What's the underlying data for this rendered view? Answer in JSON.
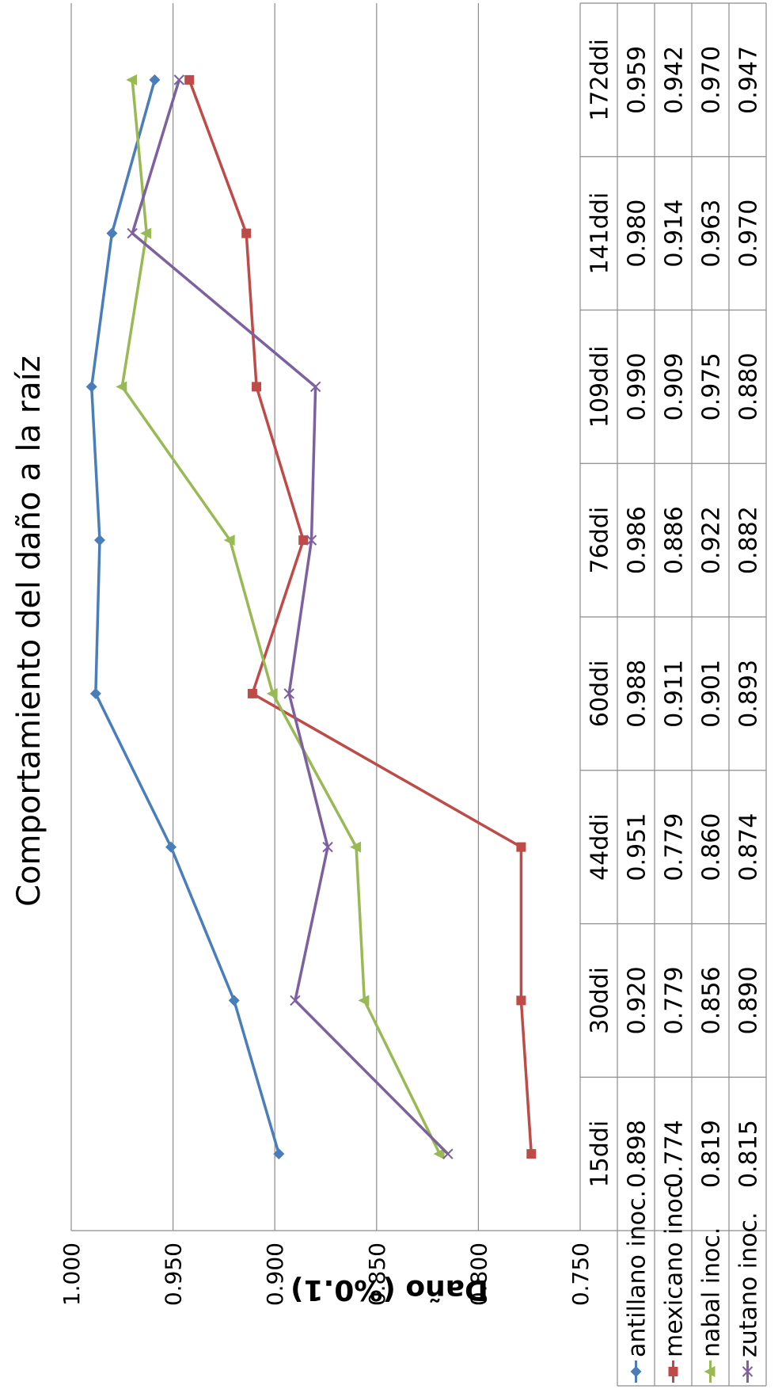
{
  "chart_data": {
    "type": "line",
    "title": "Comportamiento del daño a la raíz",
    "ylabel": "Daño  (%0.1)",
    "xlabel": "",
    "categories": [
      "15ddi",
      "30ddi",
      "44ddi",
      "60ddi",
      "76ddi",
      "109ddi",
      "141ddi",
      "172ddi"
    ],
    "ylim": [
      0.75,
      1.0
    ],
    "yticks": [
      "0.750",
      "0.800",
      "0.850",
      "0.900",
      "0.950",
      "1.000"
    ],
    "grid": true,
    "legend": "data table",
    "orientation": "rotated 90° counter-clockwise",
    "series": [
      {
        "name": "antillano inoc.",
        "color": "#4a7ebb",
        "marker": "diamond",
        "values": [
          0.898,
          0.92,
          0.951,
          0.988,
          0.986,
          0.99,
          0.98,
          0.959
        ],
        "labels": [
          "0.898",
          "0.920",
          "0.951",
          "0.988",
          "0.986",
          "0.990",
          "0.980",
          "0.959"
        ]
      },
      {
        "name": "mexicano inoc.",
        "color": "#be4b48",
        "marker": "square",
        "values": [
          0.774,
          0.779,
          0.779,
          0.911,
          0.886,
          0.909,
          0.914,
          0.942
        ],
        "labels": [
          "0.774",
          "0.779",
          "0.779",
          "0.911",
          "0.886",
          "0.909",
          "0.914",
          "0.942"
        ]
      },
      {
        "name": "nabal inoc.",
        "color": "#98b954",
        "marker": "triangle",
        "values": [
          0.819,
          0.856,
          0.86,
          0.901,
          0.922,
          0.975,
          0.963,
          0.97
        ],
        "labels": [
          "0.819",
          "0.856",
          "0.860",
          "0.901",
          "0.922",
          "0.975",
          "0.963",
          "0.970"
        ]
      },
      {
        "name": "zutano inoc.",
        "color": "#7d60a0",
        "marker": "x",
        "values": [
          0.815,
          0.89,
          0.874,
          0.893,
          0.882,
          0.88,
          0.97,
          0.947
        ],
        "labels": [
          "0.815",
          "0.890",
          "0.874",
          "0.893",
          "0.882",
          "0.880",
          "0.970",
          "0.947"
        ]
      }
    ]
  }
}
